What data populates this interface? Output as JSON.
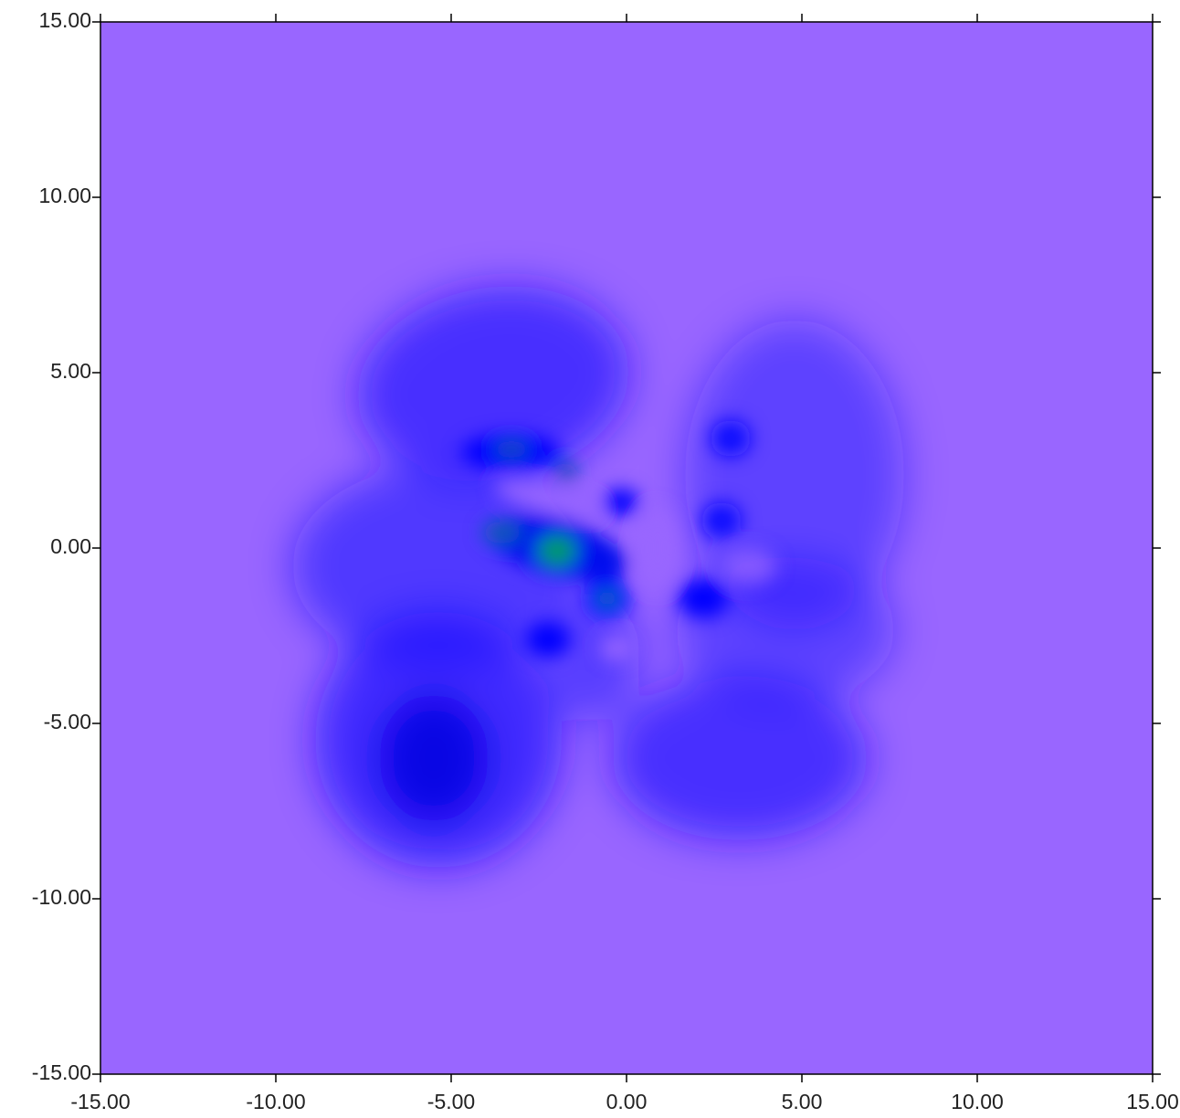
{
  "chart_data": {
    "type": "heatmap",
    "xlim": [
      -15,
      15
    ],
    "ylim": [
      -15,
      15
    ],
    "xticks": [
      {
        "value": -15,
        "label": "-15.00"
      },
      {
        "value": -10,
        "label": "-10.00"
      },
      {
        "value": -5,
        "label": "-5.00"
      },
      {
        "value": 0,
        "label": "0.00"
      },
      {
        "value": 5,
        "label": "5.00"
      },
      {
        "value": 10,
        "label": "10.00"
      },
      {
        "value": 15,
        "label": "15.00"
      }
    ],
    "yticks": [
      {
        "value": -15,
        "label": "-15.00"
      },
      {
        "value": -10,
        "label": "-10.00"
      },
      {
        "value": -5,
        "label": "-5.00"
      },
      {
        "value": 0,
        "label": "0.00"
      },
      {
        "value": 5,
        "label": "5.00"
      },
      {
        "value": 10,
        "label": "10.00"
      },
      {
        "value": 15,
        "label": "15.00"
      }
    ],
    "color": "#9966ff"
  }
}
